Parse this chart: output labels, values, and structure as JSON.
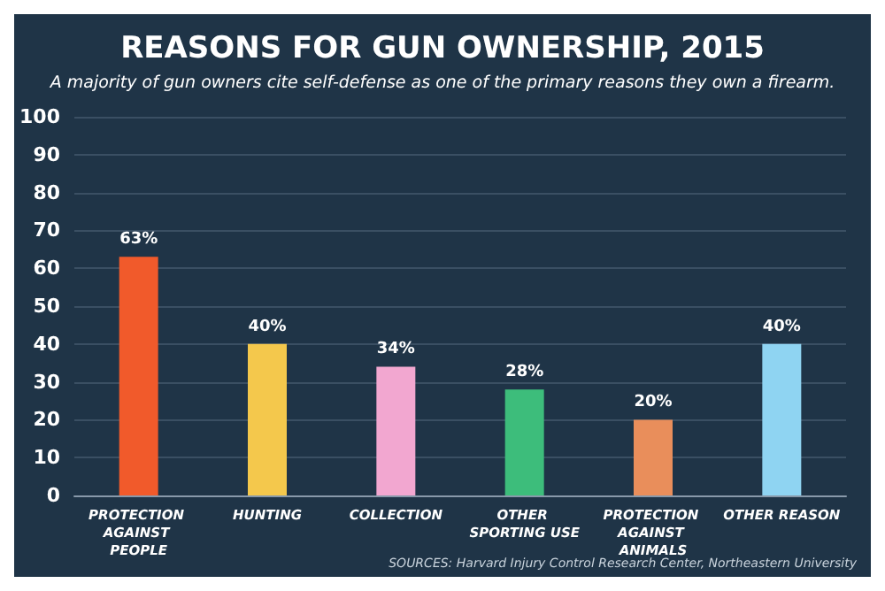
{
  "chart_data": {
    "type": "bar",
    "title": "REASONS FOR GUN OWNERSHIP, 2015",
    "subtitle": "A majority of gun owners cite self-defense as one of the primary reasons they own a firearm.",
    "categories": [
      "PROTECTION AGAINST PEOPLE",
      "HUNTING",
      "COLLECTION",
      "OTHER SPORTING USE",
      "PROTECTION AGAINST ANIMALS",
      "OTHER REASON"
    ],
    "values": [
      63,
      40,
      34,
      28,
      20,
      40
    ],
    "colors": [
      "#f15a2b",
      "#f4c84c",
      "#f2a7d0",
      "#3dbd7b",
      "#e98e5b",
      "#8fd4f2"
    ],
    "value_labels": [
      "63%",
      "40%",
      "34%",
      "28%",
      "20%",
      "40%"
    ],
    "ylim": [
      0,
      100
    ],
    "yticks": [
      0,
      10,
      20,
      30,
      40,
      50,
      60,
      70,
      80,
      90,
      100
    ],
    "grid": "y",
    "annotations": [
      "SOURCES: Harvard Injury Control Research Center, Northeastern University"
    ]
  }
}
